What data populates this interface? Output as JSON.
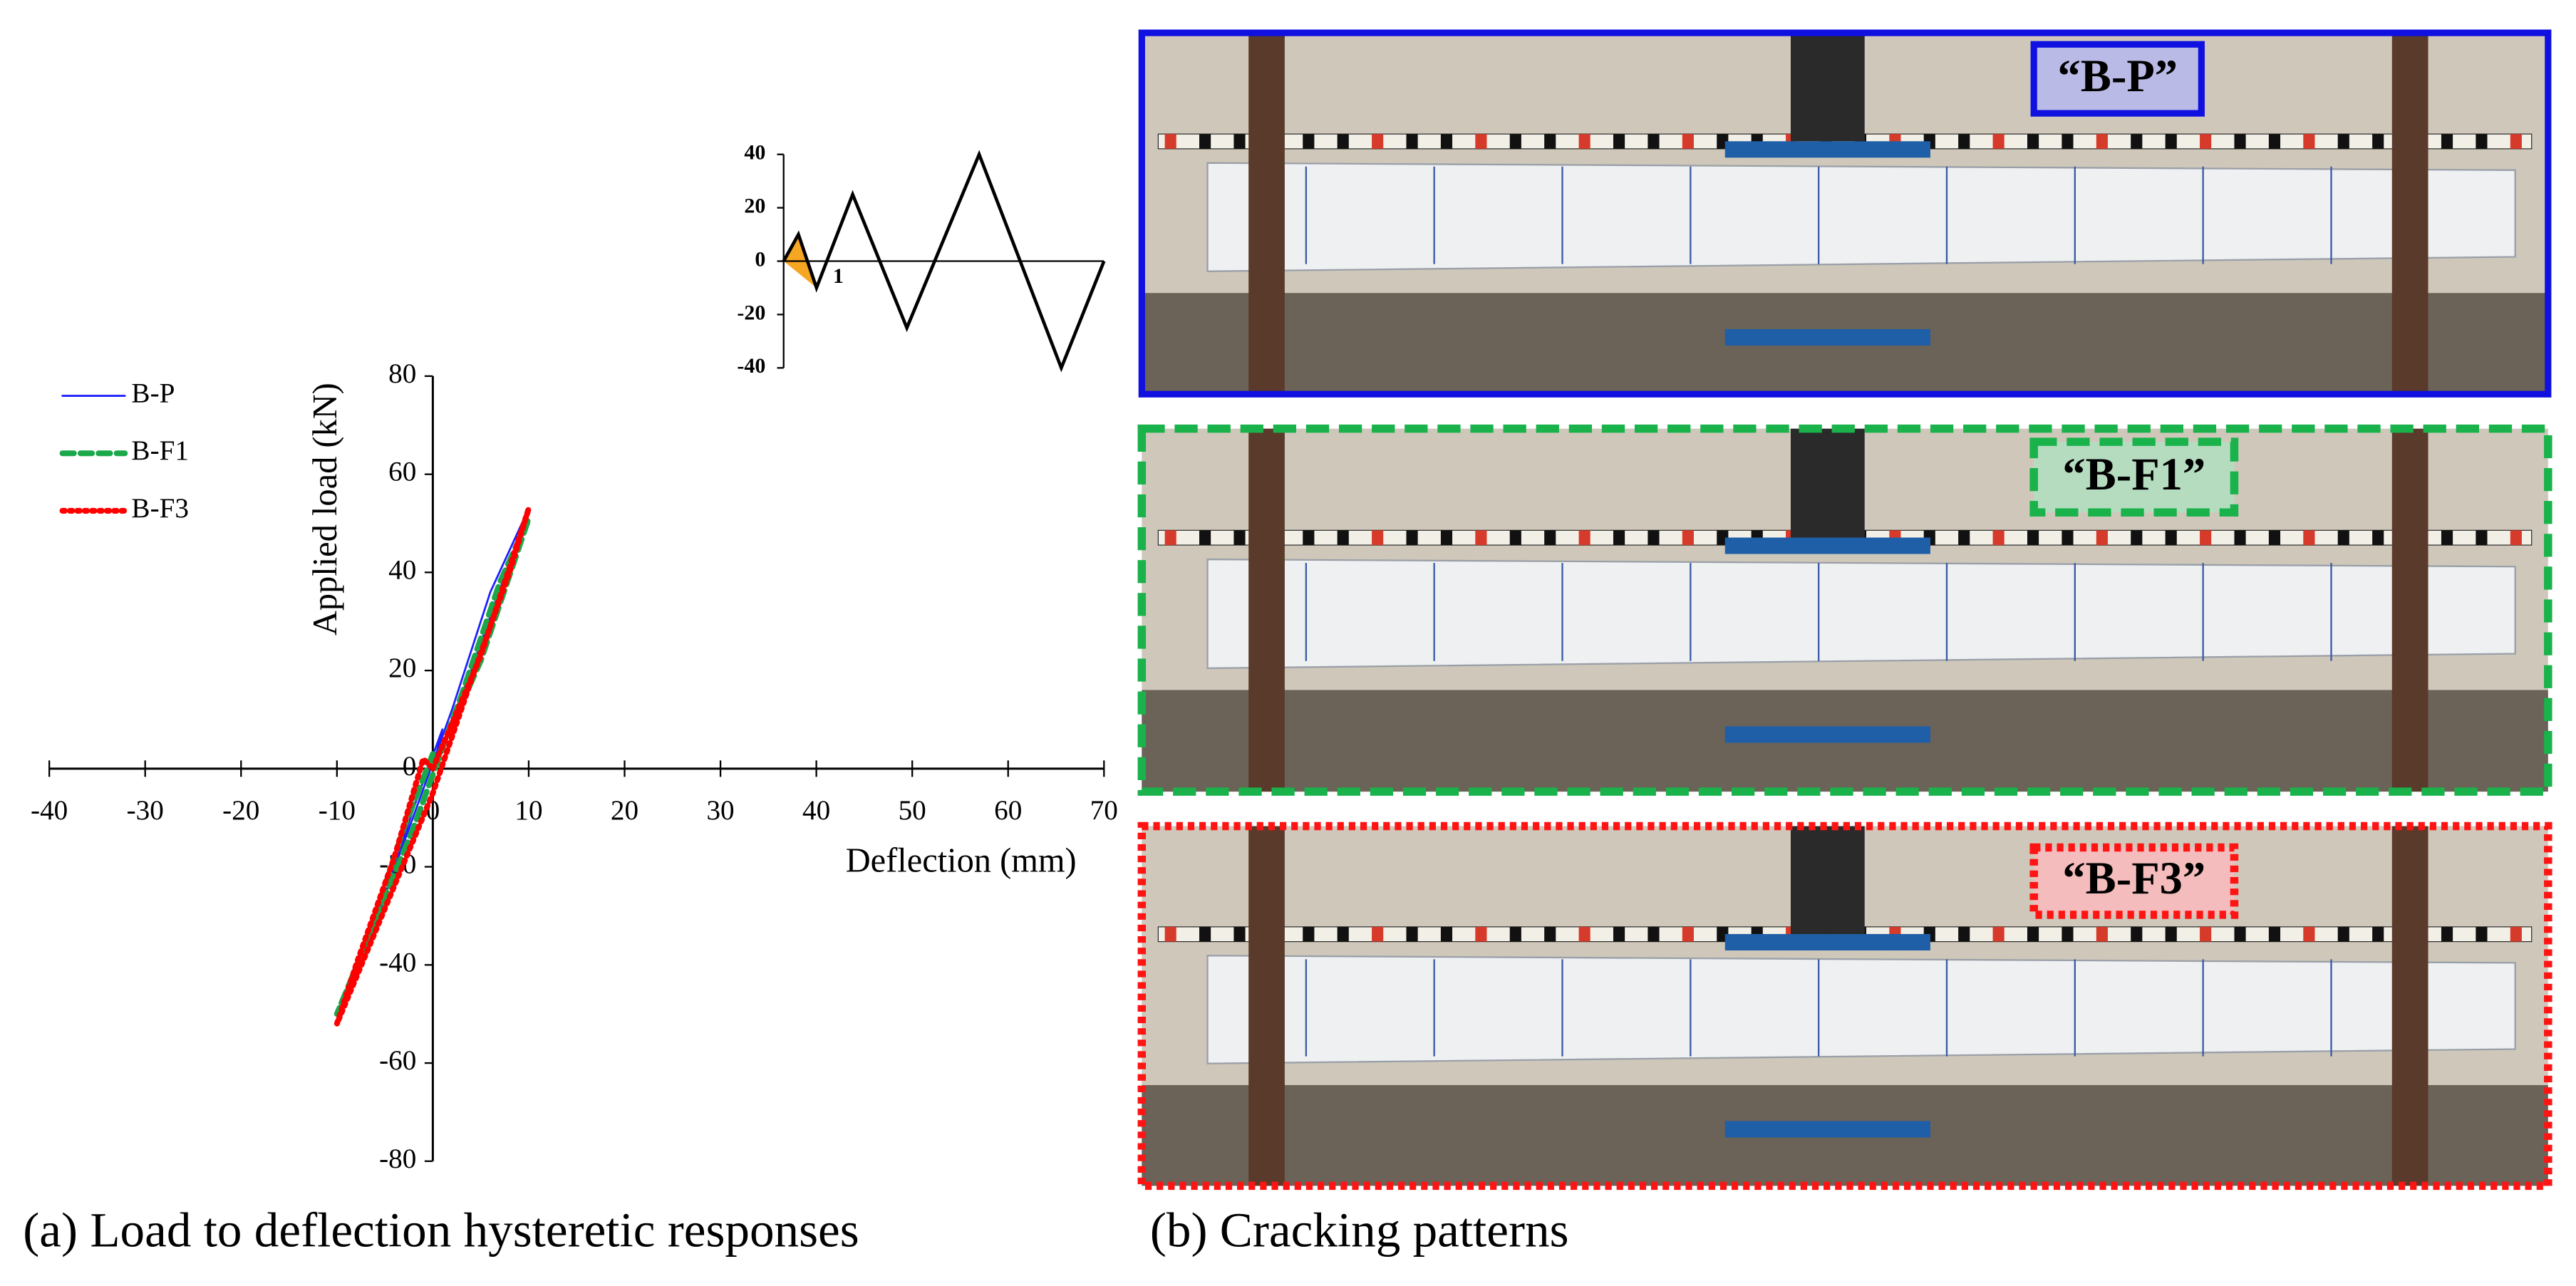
{
  "chart_data": [
    {
      "type": "line",
      "x_label": "Deflection (mm)",
      "y_label": "Applied load (kN)",
      "xlim": [
        -40,
        70
      ],
      "xticks": [
        -40,
        -30,
        -20,
        -10,
        0,
        10,
        20,
        30,
        40,
        50,
        60,
        70
      ],
      "ylim": [
        -80,
        80
      ],
      "yticks": [
        -80,
        -60,
        -40,
        -20,
        0,
        20,
        40,
        60,
        80
      ],
      "series": [
        {
          "name": "B-P",
          "color": "#1f1fff",
          "style": "solid",
          "x": [
            0,
            4,
            10,
            6,
            2,
            -3,
            -10,
            -6,
            -2,
            1,
            0
          ],
          "values": [
            0,
            20,
            53,
            36,
            12,
            -15,
            -52,
            -32,
            -8,
            8,
            0
          ]
        },
        {
          "name": "B-F1",
          "color": "#1aa84a",
          "style": "dashed",
          "x": [
            0,
            5,
            10,
            7,
            3,
            -2,
            -10,
            -7,
            -3,
            0
          ],
          "values": [
            0,
            22,
            51,
            38,
            15,
            -12,
            -50,
            -36,
            -12,
            3
          ]
        },
        {
          "name": "B-F3",
          "color": "#ff0000",
          "style": "dotted",
          "x": [
            0,
            5,
            10,
            8,
            4,
            0,
            -10,
            -8,
            -4,
            -1,
            0
          ],
          "values": [
            0,
            23,
            53,
            40,
            18,
            -5,
            -52,
            -40,
            -18,
            2,
            0
          ]
        }
      ]
    },
    {
      "type": "line",
      "xlim": [
        0,
        19.5
      ],
      "ylim": [
        -40,
        40
      ],
      "yticks": [
        -40,
        -20,
        0,
        20,
        40
      ],
      "x": [
        0,
        0.9,
        2,
        4.2,
        7.5,
        11.9,
        16.9,
        19.5
      ],
      "values": [
        0,
        10,
        -10,
        25,
        -25,
        40,
        -40,
        0
      ],
      "color": "#000000",
      "highlight_color": "#f5a623",
      "annotation": "1"
    }
  ],
  "photos": [
    {
      "label": "“B-P”",
      "color": "#1010e0",
      "border": "solid",
      "label_bg": "#b9bbe6"
    },
    {
      "label": "“B-F1”",
      "color": "#19b24b",
      "border": "dashed",
      "label_bg": "#b6dcc0"
    },
    {
      "label": "“B-F3”",
      "color": "#ff1414",
      "border": "dotted",
      "label_bg": "#f4bcbc"
    }
  ],
  "captions": [
    "(a) Load to deflection hysteretic  responses",
    "(b) Cracking  patterns"
  ]
}
